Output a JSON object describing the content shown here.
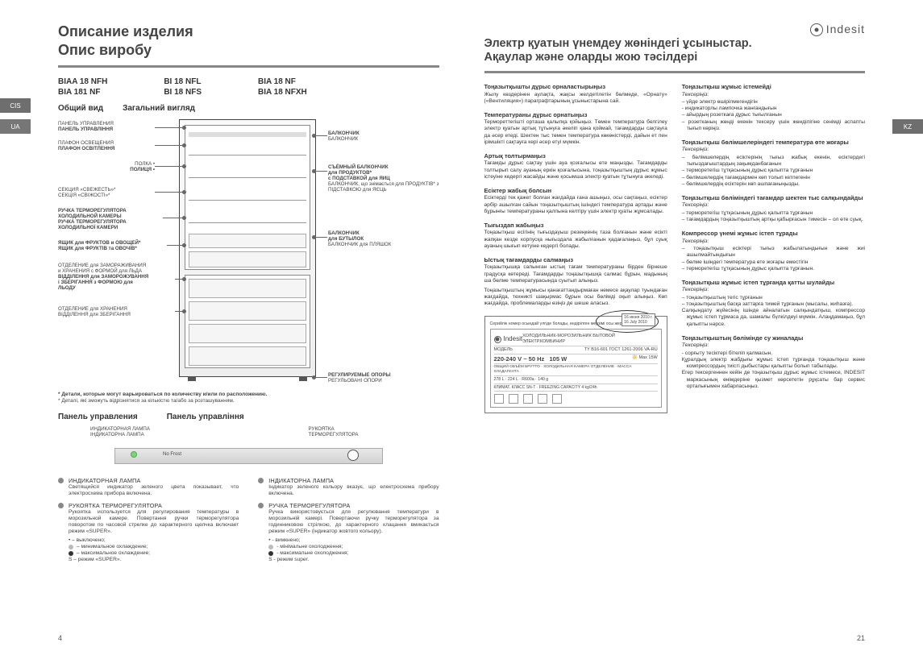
{
  "tabs": {
    "cis": "CIS",
    "ua": "UA",
    "kz": "KZ"
  },
  "left": {
    "heading1": "Описание изделия",
    "heading2": "Опис виробу",
    "models": {
      "c1a": "BIAA 18 NFH",
      "c1b": "BIA 181 NF",
      "c2a": "BI 18 NFL",
      "c2b": "BI 18 NFS",
      "c3a": "BIA 18 NF",
      "c3b": "BIA 18 NFXH"
    },
    "subhead_ru": "Общий вид",
    "subhead_ua": "Загальний вигляд",
    "callouts": {
      "cl1a": "ПАНЕЛЬ УПРАВЛЕНИЯ",
      "cl1b": "ПАНЕЛЬ УПРАВЛІННЯ",
      "cl2a": "ПЛАФОН ОСВЕЩЕНИЯ",
      "cl2b": "ПЛАФОН ОСВІТЛЕННЯ",
      "cl3a": "ПОЛКА •",
      "cl3b": "ПОЛИЦЯ •",
      "cl4a": "СЕКЦИЯ «СВЕЖЕСТЬ»*",
      "cl4b": "СЕКЦІЯ «СВІЖОСТІ»*",
      "cl5a": "РУЧКА ТЕРМОРЕГУЛЯТОРА",
      "cl5b": "ХОЛОДИЛЬНОЙ КАМЕРЫ",
      "cl5c": "РУЧКА ТЕРМОРЕГУЛЯТОРА",
      "cl5d": "ХОЛОДИЛЬНОЇ КАМЕРИ",
      "cl6a": "ЯЩИК для ФРУКТОВ и ОВОЩЕЙ*",
      "cl6b": "ЯЩИК для ФРУКТІВ та ОВОЧІВ*",
      "cl7a": "ОТДЕЛЕНИЕ для ЗАМОРАЖИВАНИЯ",
      "cl7b": "и ХРАНЕНИЯ с ФОРМОЙ для ЛЬДА",
      "cl7c": "ВІДДІЛЕННЯ для ЗАМОРОЖУВАННЯ",
      "cl7d": "і ЗБЕРІГАННЯ з ФОРМОЮ для",
      "cl7e": "ЛЬОДУ",
      "cl8a": "ОТДЕЛЕНИЕ для ХРАНЕНИЯ",
      "cl8b": "ВІДДІЛЕННЯ для ЗБЕРІГАННЯ",
      "cr1a": "БАЛКОНЧИК",
      "cr1b": "БАЛКОНЧИК",
      "cr2a": "СЪЁМНЫЙ БАЛКОНЧИК",
      "cr2b": "для ПРОДУКТОВ*",
      "cr2c": "с ПОДСТАВКОЙ для ЯИЦ",
      "cr2d": "БАЛКОНЧИК, що знімається для ПРОДУКТІВ* з ПІДСТАВКОЮ для ЯЄЦЬ",
      "cr3a": "БАЛКОНЧИК",
      "cr3b": "для БУТЫЛОК",
      "cr3c": "БАЛКОНЧИК для ПЛЯШОК",
      "cr4a": "РЕГУЛИРУЕМЫЕ ОПОРЫ",
      "cr4b": "РЕГУЛЬОВАНІ ОПОРИ"
    },
    "note_ru": "* Детали, которые могут варьироваться по количеству и/или по расположению.",
    "note_ua": "* Деталі, які зможуть відрізнятися за кількістю та/або за розташуванням.",
    "panel_head_ru": "Панель управления",
    "panel_head_ua": "Панель управління",
    "pd": {
      "lamp_ru": "ИНДИКАТОРНАЯ ЛАМПА",
      "lamp_ua": "ІНДИКАТОРНА ЛАМПА",
      "knob_ru": "РУКОЯТКА",
      "knob_ru2": "ТЕРМОРЕГУЛЯТОРА",
      "nofrost": "No Frost"
    },
    "lower": {
      "ru": {
        "t1": "ИНДИКАТОРНАЯ ЛАМПА",
        "b1": "Светящийся индикатор зеленого цвета показывает, что электросхема прибора включена.",
        "t2": "РУКОЯТКА ТЕРМОРЕГУЛЯТОРА",
        "b2": "Рукоятка используется для регулирования температуры в морозильной камере. Повертання ручки терморегулятора поворотом по часовой стрелке до характерного щелчка включает режим «SUPER».",
        "l1": "• – выключено;",
        "l2": "– минимальное охлаждение;",
        "l3": "– максимальное охлаждение;",
        "l4": "S – режим «SUPER»."
      },
      "ua": {
        "t1": "ІНДИКАТОРНА ЛАМПА",
        "b1": "Індикатор зеленого кольору вказує, що електросхема прибору включена.",
        "t2": "РУЧКА ТЕРМОРЕГУЛЯТОРА",
        "b2": "Ручка використовується для регулювання температури в морозильній камері. Повертаючи ручку терморегулятора за годинниковою стрілкою, до характерного клацання вмикається режим «SUPER» (індикатор жовтого кольору).",
        "l1": "• - вимкнено;",
        "l2": "- мінімальне охолодження;",
        "l3": "- максимальне охолодження;",
        "l4": "S - режим super."
      }
    },
    "pagenum": "4"
  },
  "right": {
    "logo": "Indesit",
    "heading1": "Электр қуатын үнемдеу жөніндегі ұсыныстар.",
    "heading2": "Ақаулар және оларды жою тәсілдері",
    "col1": [
      {
        "title": "Тоңазытқышты дұрыс орналастырыңыз",
        "body": "Жылу көздерінен аулақта, жақсы желдетілетін бөлмеде, «Орнату» («Вентиляция») параграфтарының ұсыныстарына сай."
      },
      {
        "title": "Температураны дұрыс орнатыңыз",
        "body": "Термореттегішті орташа қалыпқа қойыңыз. Төмен температура белгілеу электр қуатын артық тұтынуға әкеліп қана қоймай, тағамдарды сақтауға да әсер етеді. Шектен тыс төмен температура көкөністерді, дайын ет пен ірімшікті сақтауға кері әсер етуі мүмкін."
      },
      {
        "title": "Артық толтырмаңыз",
        "body": "Тағамды дұрыс сақтау үшін ауа қозғалысы өте маңызды. Тағамдарды толтырып салу ауаның еркін қозғалысына, тоңазытқыштың дұрыс жұмыс істеуіне кедергі жасайды және қосымша электр қуатын тұтынуға әкеледі."
      },
      {
        "title": "Есіктер жабық болсын",
        "body": "Есіктерді тек қажет болған жағдайда ғана ашыңыз, осы сақтаңыз, есіктер әрбір ашылған сайын тоңазытқыштың ішіндегі температура артады және бұрынғы температураны қалпына келтіру үшін электр қуаты жұмсалады."
      },
      {
        "title": "Тығыздап жабыңыз",
        "body": "Тоңазытқыш есігінің тығыздауыш резеңкенің таза болғанын және есікті жапқан кезде корпусқа нығыздала жабылғанын қадағалаңыз, бұл суық ауаның шығып кетуіне кедергі болады."
      },
      {
        "title": "Ыстық тағамдарды салмаңыз",
        "body": "Тоңазытқышқа салынған ыстық тағам температураны бірден бірнеше градусқа көтереді. Тағамдарды тоңазытқышқа салмас бұрын, мадының ша бөлме температурасында суытып алыңыз.",
        "extra": "Тоңазытқыштың жұмысы қанағаттандырмаған немесе ақаулар туындаған жағдайда, техникті шақырмас бұрын осы бөлімді оқып алыңыз. Көп жағдайда, проблемаларды өзіңіз де шеше аласыз."
      }
    ],
    "col2": [
      {
        "title": "Тоңазытқыш жұмыс істемейді",
        "sub": "Тексеріңіз:",
        "lines": [
          "– үйде электр өшірілмегендігін",
          "- индикаторлы лампочка жанғандығын",
          "– айырдың розеткаға дұрыс тығылғанын",
          "– розетканың жөнді екенін тексеру үшін жөнділігіне сенімді аспапты тығып көріңіз."
        ]
      },
      {
        "title": "Тоңазытқыш бөлімшелеріндегі температура өте жоғары",
        "sub": "Тексеріңіз:",
        "lines": [
          "– бөлімшелердің есіктерінің тығыз жабық екенін, есіктердегі тығыздағыштардың зақымданбағанын",
          "– терморетегіш тұтқасының дұрыс қалыпта тұрғанын",
          "– бөлімшелердің тағамдармен көп толып кетпегенін",
          "– бөлімшелердің есіктерін көп ашпағаныңызды."
        ]
      },
      {
        "title": "Тоңазытқыш бөліміндегі тағамдар шектен тыс салқындайды",
        "sub": "Тексеріңіз:",
        "lines": [
          "– терморетегіш тұтқасының дұрыс қалыпта тұрғанын",
          "– тағамдардың тоңазытқыштың артқы қабырғасын тимесін – ол өте суық."
        ]
      },
      {
        "title": "Компрессор үнемі жұмыс істеп тұрады",
        "sub": "Тексеріңіз:",
        "lines": [
          "– тоңазытқыш есіктері тығыз жабылатындығын және жиі ашылмайтындығын",
          "– бөлме ішіндегі температура өте жоғары еместігін",
          "– терморетегіш тұтқасының дұрыс қалыпта тұрғанын."
        ]
      },
      {
        "title": "Тоңазытқыш жұмыс істеп тұрғанда қатты шулайды",
        "sub": "Тексеріңіз:",
        "lines": [
          "– тоңазытқыштың тегіс тұрғанын",
          "– тоңазытқыштың басқа заттарға тимей тұрғанын (мысалы, жиһазға).",
          "Салқындату жүйесінің ішінде айналатын салқындатқыш, компрессор жұмыс істеп тұрмаса да, шамалы бүлкілдеуі мүмкін. Алаңдамаңыз, бұл қалыпты нәрсе."
        ]
      },
      {
        "title": "Тоңазытқыштың бөлімінде су жиналады",
        "sub": "Тексеріңіз:",
        "lines": [
          "- сорғыту тесіктері бітеліп қалмасын.",
          "Құралдың электр жабдығы жұмыс істеп тұрғанда тоңазытқыш жəне компрессордың тиісті дыбыстары қалыпты болып табылады.",
          "Егер тексергеннен кейін де тоңазытқыш дұрыс жұмыс істемесе, INDESIT маркасының өнімдеріне қызмет көрсететін рұқсаты бар сервис орталығымен хабарласыңыз."
        ]
      }
    ],
    "label": {
      "hint": "Серийлік номер осындай үлгіде болады, өндірілген мерзімі осы жерде жазылып тұр",
      "brand": "Indesit",
      "descr": "ХОЛОДИЛЬНИК-МОРОЗИЛЬНИК БЫТОВОЙ ЭЛЕКТР.КОМБИНИР",
      "model_lbl": "МОДЕЛЬ",
      "model_val": "TY B16-601 ГОСТ 1261-2006   VA-RU",
      "volt": "220-240 V ~ 50 Hz",
      "watt": "105 W",
      "max": "Max 15W",
      "row1": "ОБЩИЙ ОБЪЁМ БРУТТО · ХОЛОДИЛЬНАЯ КАМЕРА ОТДЕЛЕНИЕ · МАССА ХЛАДАГЕНТА",
      "row2": "278 L · 224 L · R600a · 140 g",
      "row3": "КЛИМАТ. КЛАСС SN-T · FREEZING CAPACITY 4 kg/24h",
      "date1": "16 июня 2010 г.",
      "date2": "16 July 2010"
    },
    "pagenum": "21"
  }
}
